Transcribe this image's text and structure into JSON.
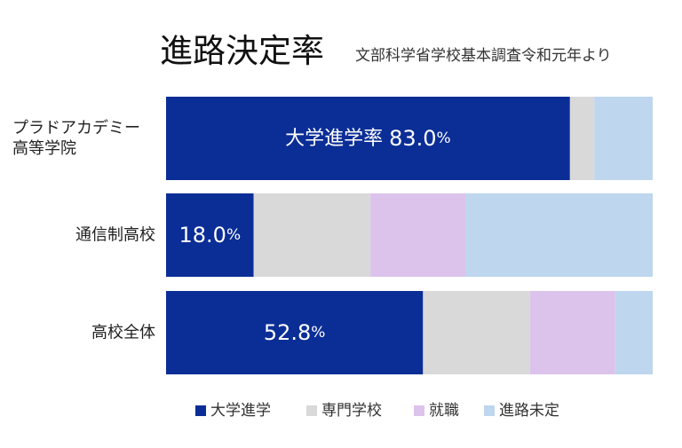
{
  "chart_data": {
    "type": "bar",
    "orientation": "horizontal",
    "stacked": true,
    "percent_stacked": true,
    "title": "進路決定率",
    "subtitle": "文部科学省学校基本調査令和元年より",
    "categories": [
      {
        "lines": [
          "プラドアカデミー",
          "高等学院"
        ]
      },
      {
        "lines": [
          "通信制高校"
        ]
      },
      {
        "lines": [
          "高校全体"
        ]
      }
    ],
    "series": [
      {
        "name": "大学進学",
        "color": "#0b2e96",
        "values": [
          83.0,
          18.0,
          52.8
        ]
      },
      {
        "name": "専門学校",
        "color": "#d9d9d9",
        "values": [
          5.0,
          24.0,
          22.0
        ]
      },
      {
        "name": "就職",
        "color": "#dcc3eb",
        "values": [
          0.0,
          19.5,
          17.5
        ]
      },
      {
        "name": "進路未定",
        "color": "#bed6ee",
        "values": [
          12.0,
          38.5,
          7.7
        ]
      }
    ],
    "data_labels": [
      {
        "prefix": "大学進学率 ",
        "number": "83.0",
        "unit": "%"
      },
      {
        "prefix": "",
        "number": "18.0",
        "unit": "%"
      },
      {
        "prefix": "",
        "number": "52.8",
        "unit": "%"
      }
    ],
    "xlim": [
      0,
      100
    ],
    "grid": false,
    "legend_position": "bottom"
  }
}
